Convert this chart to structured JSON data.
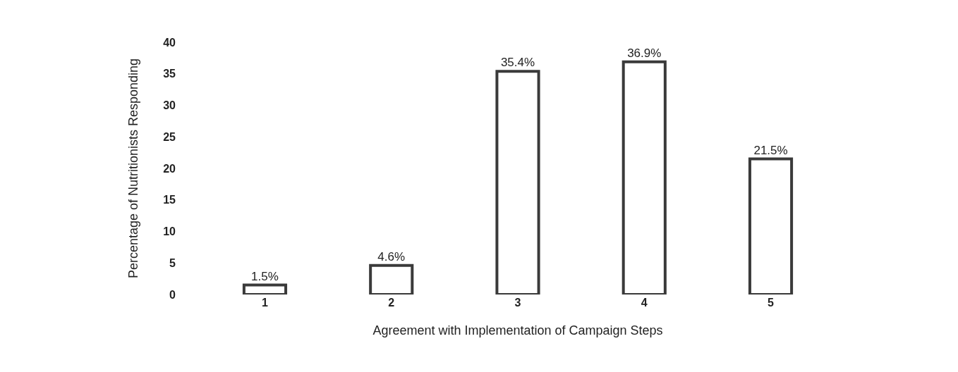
{
  "chart_data": {
    "type": "bar",
    "xlabel": "Agreement with Implementation of Campaign Steps",
    "ylabel": "Percentage of Nutritionists Responding",
    "categories": [
      "1",
      "2",
      "3",
      "4",
      "5"
    ],
    "values": [
      1.5,
      4.6,
      35.4,
      36.9,
      21.5
    ],
    "value_labels": [
      "1.5%",
      "4.6%",
      "35.4%",
      "36.9%",
      "21.5%"
    ],
    "color": "#3a3a3a",
    "ylim": [
      0,
      40
    ],
    "yticks": [
      0,
      5,
      10,
      15,
      20,
      25,
      30,
      35,
      40
    ],
    "legend": false
  }
}
